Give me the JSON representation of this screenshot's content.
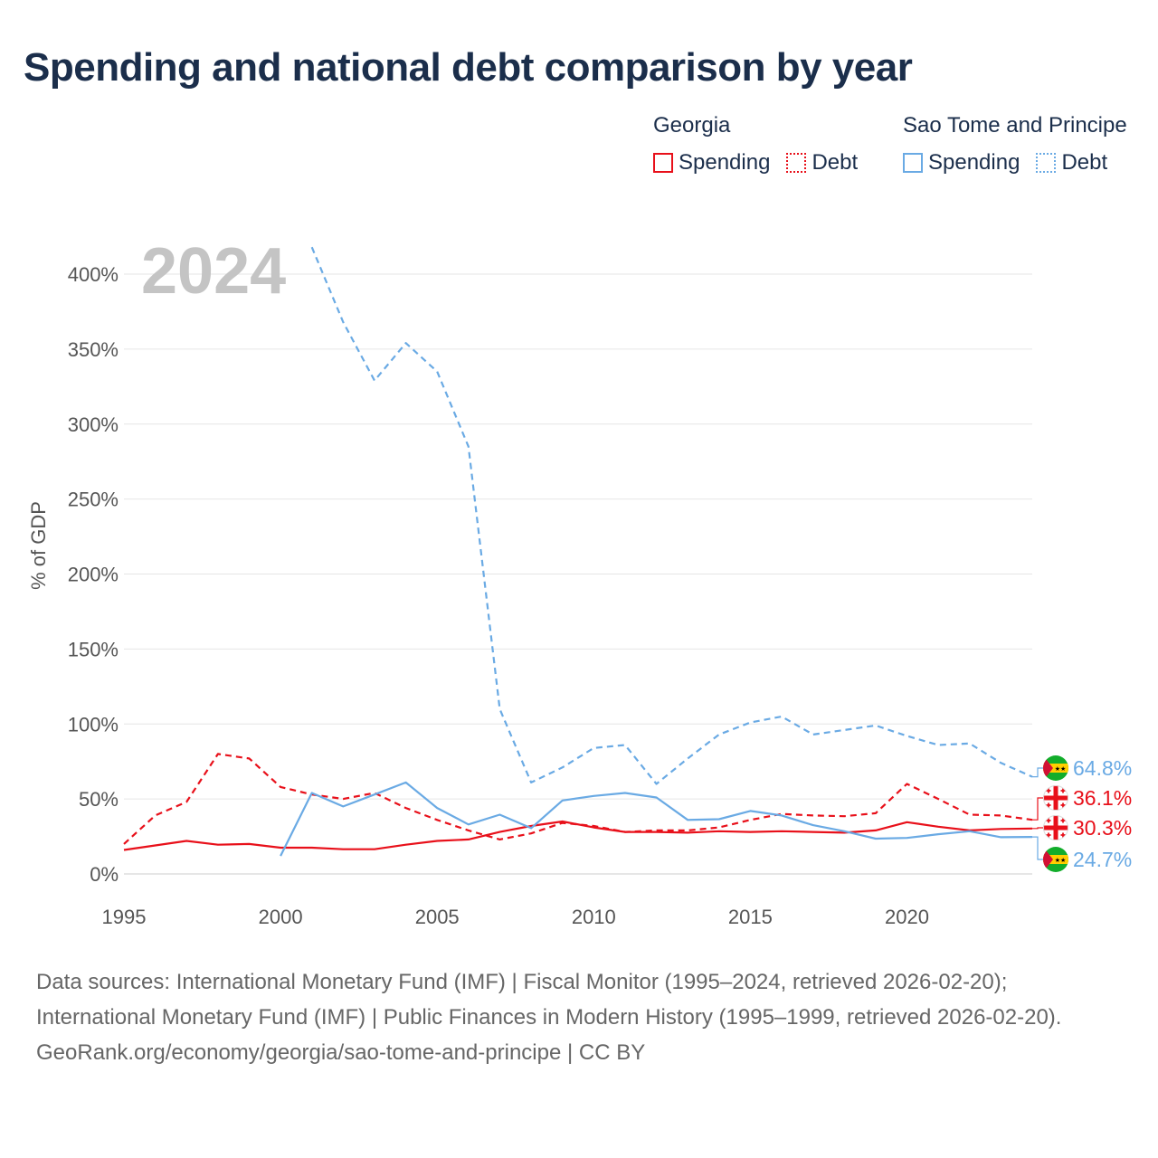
{
  "title": "Spending and national debt comparison by year",
  "legend": {
    "groups": [
      {
        "name": "Georgia",
        "color": "#e8101a",
        "items": [
          {
            "label": "Spending",
            "style": "solid"
          },
          {
            "label": "Debt",
            "style": "dotted"
          }
        ]
      },
      {
        "name": "Sao Tome and Principe",
        "color": "#6aaae4",
        "items": [
          {
            "label": "Spending",
            "style": "solid"
          },
          {
            "label": "Debt",
            "style": "dotted"
          }
        ]
      }
    ]
  },
  "chart_data": {
    "type": "line",
    "year_label": "2024",
    "ylabel": "% of GDP",
    "xlim": [
      1995,
      2024
    ],
    "ylim": [
      0,
      400
    ],
    "x_ticks": [
      1995,
      2000,
      2005,
      2010,
      2015,
      2020
    ],
    "y_ticks": [
      0,
      50,
      100,
      150,
      200,
      250,
      300,
      350,
      400
    ],
    "y_tick_labels": [
      "0%",
      "50%",
      "100%",
      "150%",
      "200%",
      "250%",
      "300%",
      "350%",
      "400%"
    ],
    "series": [
      {
        "name": "Georgia Spending",
        "country": "Georgia",
        "metric": "Spending",
        "color": "#e8101a",
        "dash": false,
        "x": [
          1995,
          1996,
          1997,
          1998,
          1999,
          2000,
          2001,
          2002,
          2003,
          2004,
          2005,
          2006,
          2007,
          2008,
          2009,
          2010,
          2011,
          2012,
          2013,
          2014,
          2015,
          2016,
          2017,
          2018,
          2019,
          2020,
          2021,
          2022,
          2023,
          2024
        ],
        "values": [
          16,
          19,
          22,
          19.5,
          20,
          17.5,
          17.5,
          16.5,
          16.5,
          19.5,
          22,
          23,
          28,
          32,
          35,
          31,
          28,
          28,
          27.5,
          28.5,
          28,
          28.5,
          28,
          27.5,
          29,
          34.5,
          31.5,
          29,
          30,
          30.3
        ]
      },
      {
        "name": "Georgia Debt",
        "country": "Georgia",
        "metric": "Debt",
        "color": "#e8101a",
        "dash": true,
        "x": [
          1995,
          1996,
          1997,
          1998,
          1999,
          2000,
          2001,
          2002,
          2003,
          2004,
          2005,
          2006,
          2007,
          2008,
          2009,
          2010,
          2011,
          2012,
          2013,
          2014,
          2015,
          2016,
          2017,
          2018,
          2019,
          2020,
          2021,
          2022,
          2023,
          2024
        ],
        "values": [
          20,
          39,
          48,
          80,
          77,
          58,
          53,
          50,
          54,
          44,
          36,
          29,
          23,
          27,
          34,
          32,
          28,
          29,
          29,
          31,
          36,
          40,
          39,
          38.5,
          40.5,
          60,
          50,
          39.5,
          39,
          36.1
        ]
      },
      {
        "name": "Sao Tome and Principe Spending",
        "country": "Sao Tome and Principe",
        "metric": "Spending",
        "color": "#6aaae4",
        "dash": false,
        "x": [
          2000,
          2001,
          2002,
          2003,
          2004,
          2005,
          2006,
          2007,
          2008,
          2009,
          2010,
          2011,
          2012,
          2013,
          2014,
          2015,
          2016,
          2017,
          2018,
          2019,
          2020,
          2021,
          2022,
          2023,
          2024
        ],
        "values": [
          12,
          54,
          45,
          53,
          61,
          44,
          33,
          39.5,
          30.5,
          49,
          52,
          54,
          51,
          36,
          36.5,
          42,
          39,
          32.5,
          28.5,
          23.5,
          24,
          26.5,
          28.5,
          24.5,
          24.7
        ]
      },
      {
        "name": "Sao Tome and Principe Debt",
        "country": "Sao Tome and Principe",
        "metric": "Debt",
        "color": "#6aaae4",
        "dash": true,
        "x": [
          2001,
          2002,
          2003,
          2004,
          2005,
          2006,
          2007,
          2008,
          2009,
          2010,
          2011,
          2012,
          2013,
          2014,
          2015,
          2016,
          2017,
          2018,
          2019,
          2020,
          2021,
          2022,
          2023,
          2024
        ],
        "values": [
          418,
          368,
          329,
          354,
          335,
          285,
          110,
          61,
          71,
          84,
          86,
          60,
          77,
          93,
          101,
          105,
          93,
          96,
          99,
          92,
          86,
          87,
          74,
          64.8
        ]
      }
    ],
    "end_labels": [
      {
        "text": "64.8%",
        "value": 64.8,
        "color": "#6aaae4",
        "flag": "sao-tome-flag"
      },
      {
        "text": "36.1%",
        "value": 36.1,
        "color": "#e8101a",
        "flag": "georgia-flag"
      },
      {
        "text": "30.3%",
        "value": 30.3,
        "color": "#e8101a",
        "flag": "georgia-flag"
      },
      {
        "text": "24.7%",
        "value": 24.7,
        "color": "#6aaae4",
        "flag": "sao-tome-flag"
      }
    ]
  },
  "footer": {
    "sources": "Data sources: International Monetary Fund (IMF) | Fiscal Monitor (1995–2024, retrieved 2026-02-20); International Monetary Fund (IMF) | Public Finances in Modern History (1995–1999, retrieved 2026-02-20).",
    "attribution": "GeoRank.org/economy/georgia/sao-tome-and-principe | CC BY"
  }
}
